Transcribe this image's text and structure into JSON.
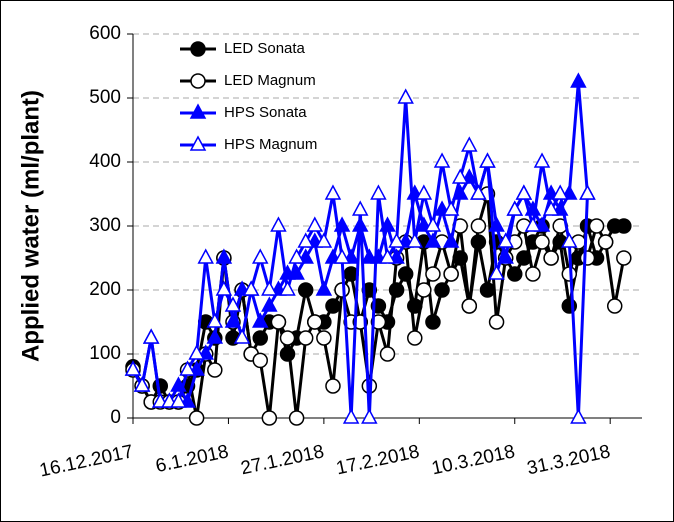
{
  "chart_data": {
    "type": "line",
    "ylabel": "Applied water (ml/plant)",
    "xlim": [
      "2017-12-16",
      "2018-04-07"
    ],
    "xticks": [
      {
        "value": "2017-12-16",
        "label": "16.12.2017"
      },
      {
        "value": "2018-01-06",
        "label": "6.1.2018"
      },
      {
        "value": "2018-01-27",
        "label": "27.1.2018"
      },
      {
        "value": "2018-02-17",
        "label": "17.2.2018"
      },
      {
        "value": "2018-03-10",
        "label": "10.3.2018"
      },
      {
        "value": "2018-03-31",
        "label": "31.3.2018"
      }
    ],
    "ylim": [
      0,
      600
    ],
    "yticks": [
      0,
      100,
      200,
      300,
      400,
      500,
      600
    ],
    "grid": true,
    "legend": "upper left",
    "x": [
      "2017-12-16",
      "2017-12-18",
      "2017-12-20",
      "2017-12-22",
      "2017-12-24",
      "2017-12-26",
      "2017-12-28",
      "2017-12-30",
      "2018-01-01",
      "2018-01-03",
      "2018-01-05",
      "2018-01-07",
      "2018-01-09",
      "2018-01-11",
      "2018-01-13",
      "2018-01-15",
      "2018-01-17",
      "2018-01-19",
      "2018-01-21",
      "2018-01-23",
      "2018-01-25",
      "2018-01-27",
      "2018-01-29",
      "2018-01-31",
      "2018-02-02",
      "2018-02-04",
      "2018-02-06",
      "2018-02-08",
      "2018-02-10",
      "2018-02-12",
      "2018-02-14",
      "2018-02-16",
      "2018-02-18",
      "2018-02-20",
      "2018-02-22",
      "2018-02-24",
      "2018-02-26",
      "2018-02-28",
      "2018-03-02",
      "2018-03-04",
      "2018-03-06",
      "2018-03-08",
      "2018-03-10",
      "2018-03-12",
      "2018-03-14",
      "2018-03-16",
      "2018-03-18",
      "2018-03-20",
      "2018-03-22",
      "2018-03-24",
      "2018-03-26",
      "2018-03-28",
      "2018-03-30",
      "2018-04-01",
      "2018-04-03"
    ],
    "series": [
      {
        "name": "LED Sonata",
        "color": "#000000",
        "marker": "circle",
        "filled": true,
        "values": [
          80,
          50,
          25,
          50,
          25,
          25,
          50,
          75,
          150,
          125,
          250,
          125,
          200,
          100,
          125,
          150,
          150,
          100,
          125,
          200,
          150,
          150,
          175,
          200,
          225,
          150,
          200,
          175,
          150,
          200,
          225,
          175,
          275,
          150,
          200,
          225,
          250,
          175,
          275,
          200,
          275,
          250,
          225,
          250,
          275,
          300,
          250,
          275,
          175,
          250,
          300,
          250,
          275,
          300,
          300
        ]
      },
      {
        "name": "LED Magnum",
        "color": "#000000",
        "marker": "circle",
        "filled": false,
        "values": [
          75,
          50,
          25,
          25,
          25,
          25,
          75,
          0,
          100,
          75,
          250,
          150,
          200,
          100,
          90,
          0,
          150,
          125,
          0,
          125,
          150,
          125,
          50,
          200,
          150,
          150,
          50,
          150,
          100,
          250,
          275,
          125,
          200,
          225,
          275,
          225,
          300,
          175,
          300,
          350,
          150,
          250,
          275,
          300,
          225,
          275,
          250,
          300,
          225,
          275,
          250,
          300,
          275,
          175,
          250
        ]
      },
      {
        "name": "HPS Sonata",
        "color": "#0000ff",
        "marker": "triangle",
        "filled": true,
        "values": [
          75,
          50,
          125,
          25,
          25,
          50,
          25,
          75,
          100,
          125,
          250,
          150,
          200,
          200,
          150,
          175,
          200,
          225,
          225,
          250,
          275,
          200,
          250,
          300,
          250,
          300,
          250,
          250,
          300,
          250,
          275,
          350,
          300,
          275,
          325,
          275,
          350,
          375,
          350,
          400,
          300,
          250,
          325,
          350,
          325,
          300,
          350,
          325,
          350,
          525,
          350,
          null,
          null,
          null,
          null
        ]
      },
      {
        "name": "HPS Magnum",
        "color": "#0000ff",
        "marker": "triangle",
        "filled": false,
        "values": [
          75,
          50,
          125,
          25,
          25,
          25,
          75,
          100,
          250,
          150,
          200,
          175,
          125,
          200,
          250,
          200,
          300,
          200,
          250,
          275,
          300,
          275,
          350,
          250,
          0,
          325,
          0,
          350,
          250,
          275,
          500,
          275,
          350,
          300,
          400,
          325,
          375,
          425,
          350,
          400,
          225,
          275,
          325,
          350,
          300,
          400,
          325,
          350,
          275,
          0,
          350,
          null,
          null,
          null,
          null
        ]
      }
    ]
  }
}
